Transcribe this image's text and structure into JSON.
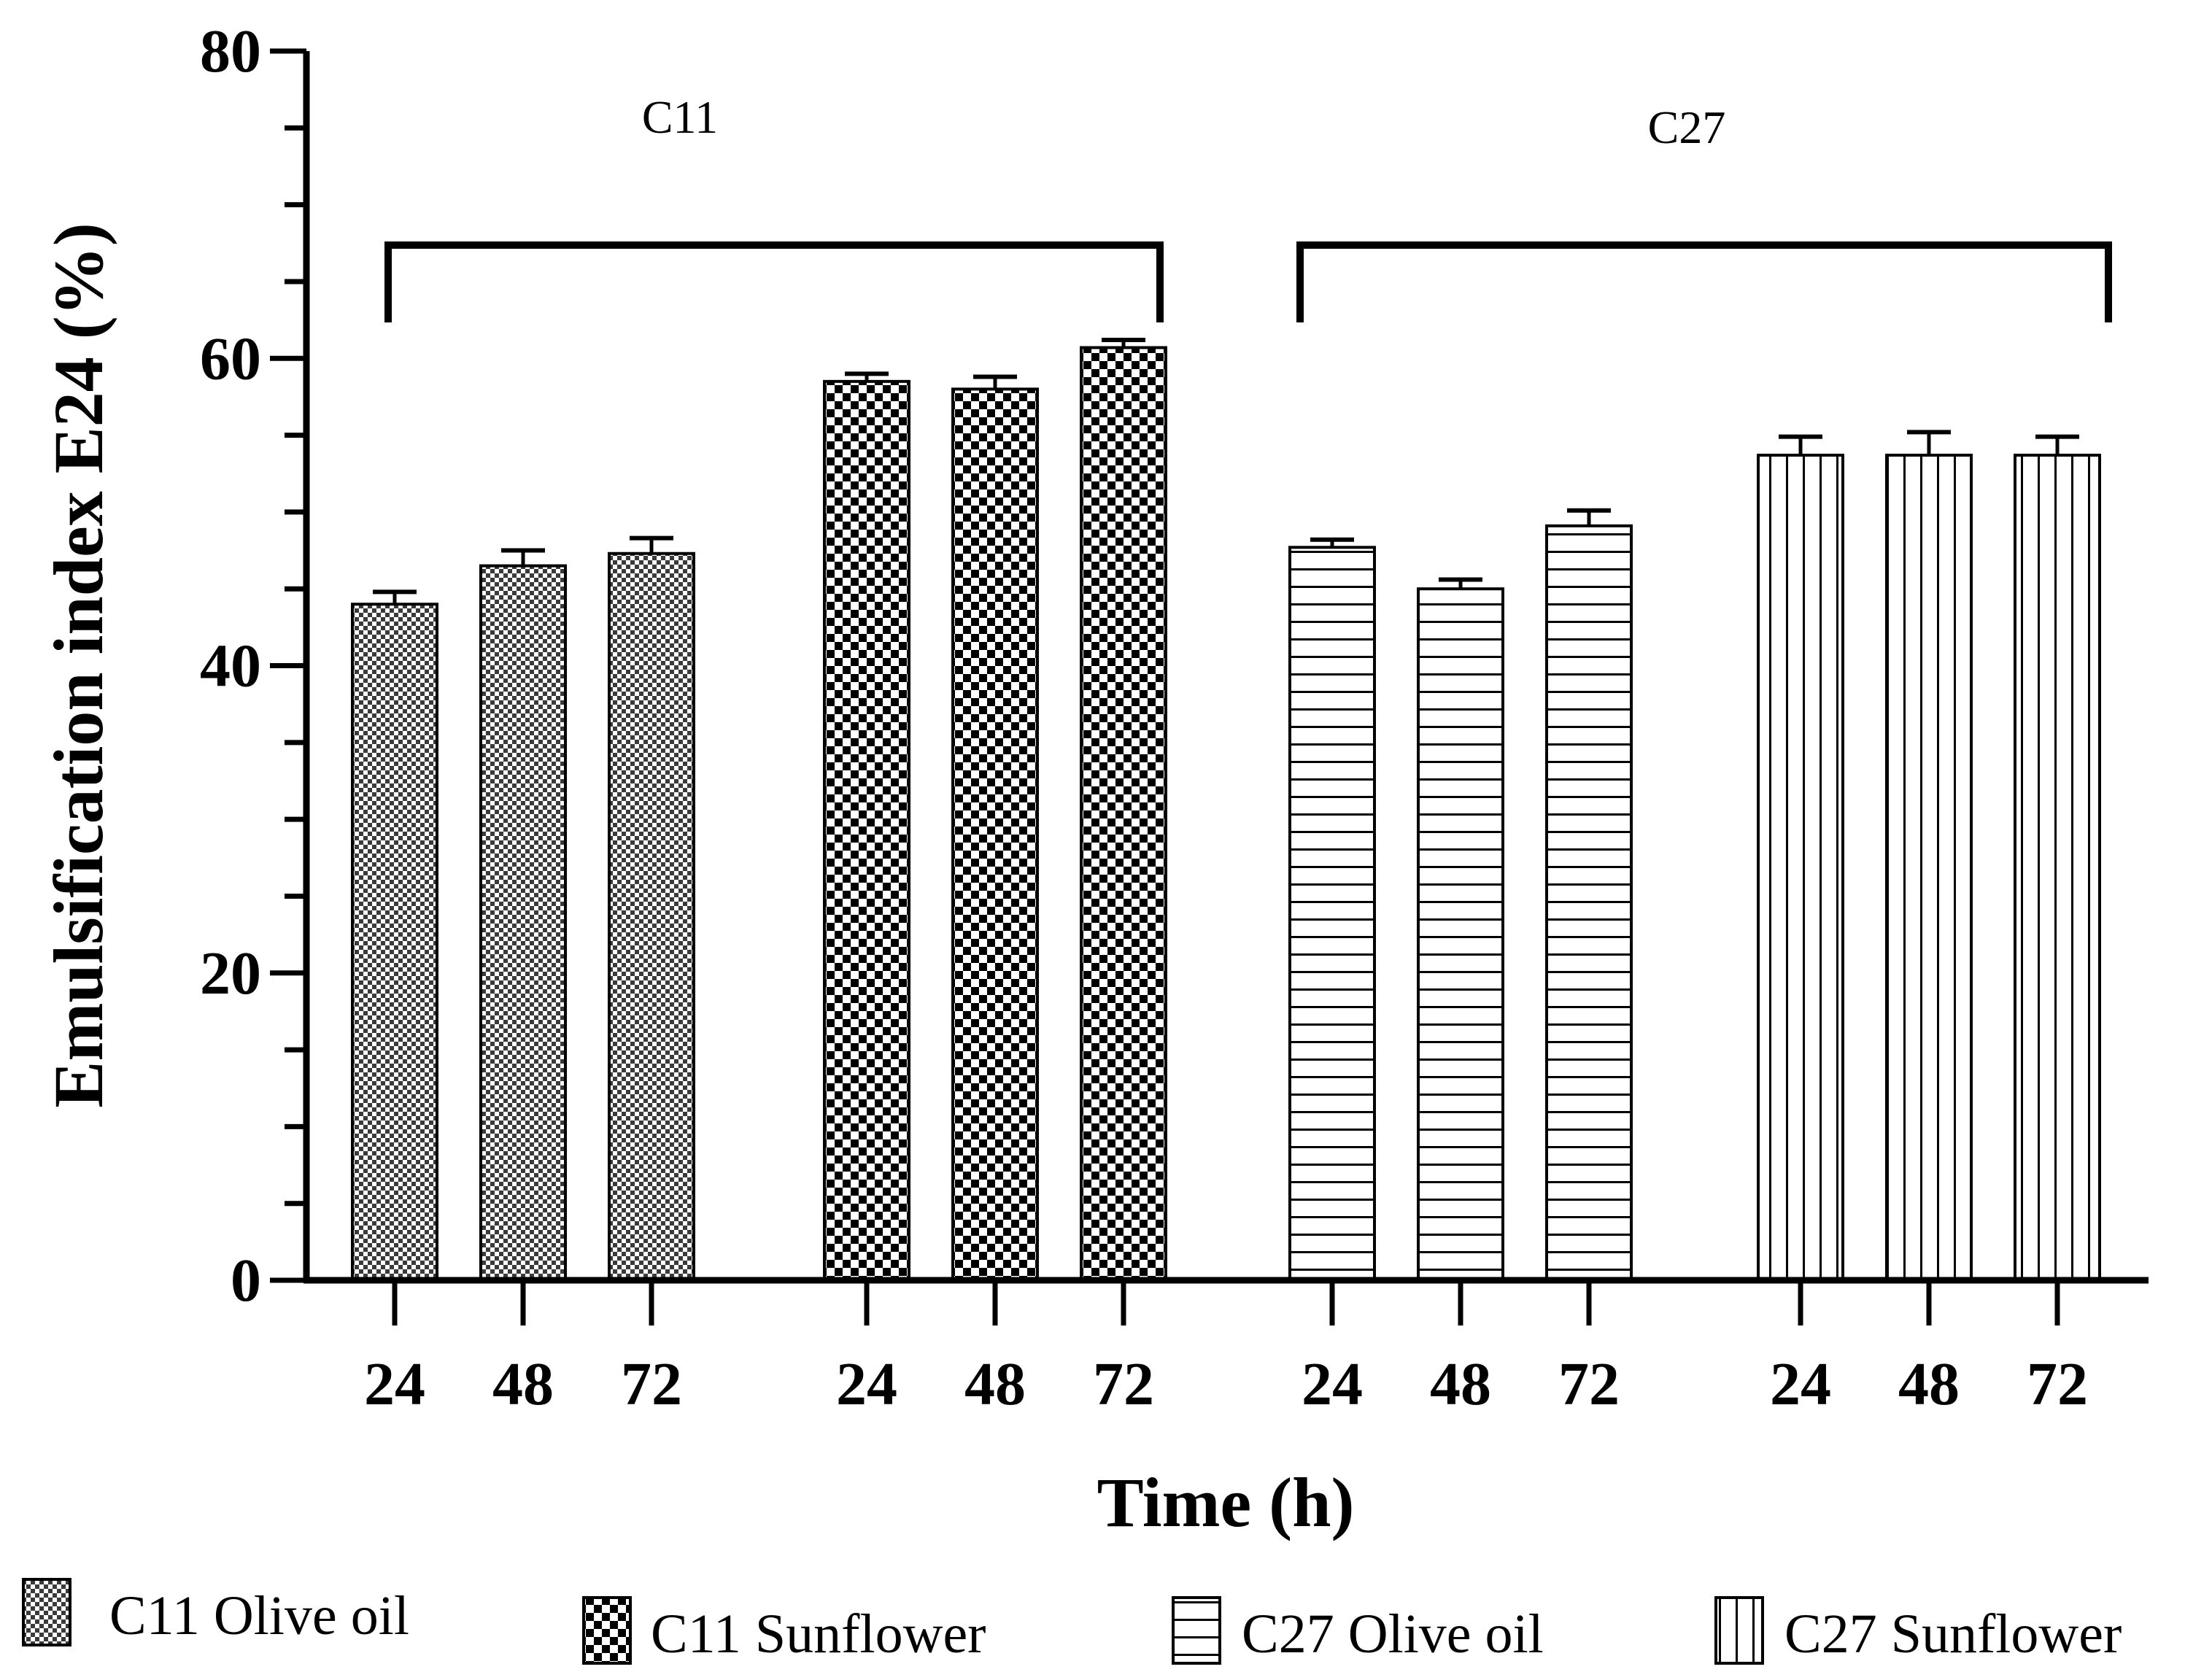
{
  "chart_data": {
    "type": "bar",
    "title": "",
    "xlabel": "Time (h)",
    "ylabel": "Emulsification index E24 (%)",
    "ylim": [
      0,
      80
    ],
    "yticks": [
      "0",
      "20",
      "40",
      "60",
      "80"
    ],
    "categories": [
      "24",
      "48",
      "72"
    ],
    "groups": [
      {
        "label": "C11",
        "series": [
          "C11 Olive oil",
          "C11 Sunflower"
        ]
      },
      {
        "label": "C27",
        "series": [
          "C27 Olive oil",
          "C27 Sunflower"
        ]
      }
    ],
    "series": [
      {
        "name": "C11 Olive oil",
        "pattern": "fine-check",
        "values": [
          44,
          46.5,
          47.3
        ],
        "errors": [
          0.8,
          1.0,
          1.0
        ]
      },
      {
        "name": "C11 Sunflower",
        "pattern": "coarse-check",
        "values": [
          58.5,
          58,
          60.7
        ],
        "errors": [
          0.5,
          0.8,
          0.5
        ]
      },
      {
        "name": "C27 Olive oil",
        "pattern": "horizontal-lines",
        "values": [
          47.7,
          45,
          49.1
        ],
        "errors": [
          0.5,
          0.6,
          1.0
        ]
      },
      {
        "name": "C27 Sunflower",
        "pattern": "vertical-lines",
        "values": [
          53.7,
          53.7,
          53.7
        ],
        "errors": [
          1.2,
          1.5,
          1.2
        ]
      }
    ],
    "legend_position": "bottom",
    "grid": false
  }
}
